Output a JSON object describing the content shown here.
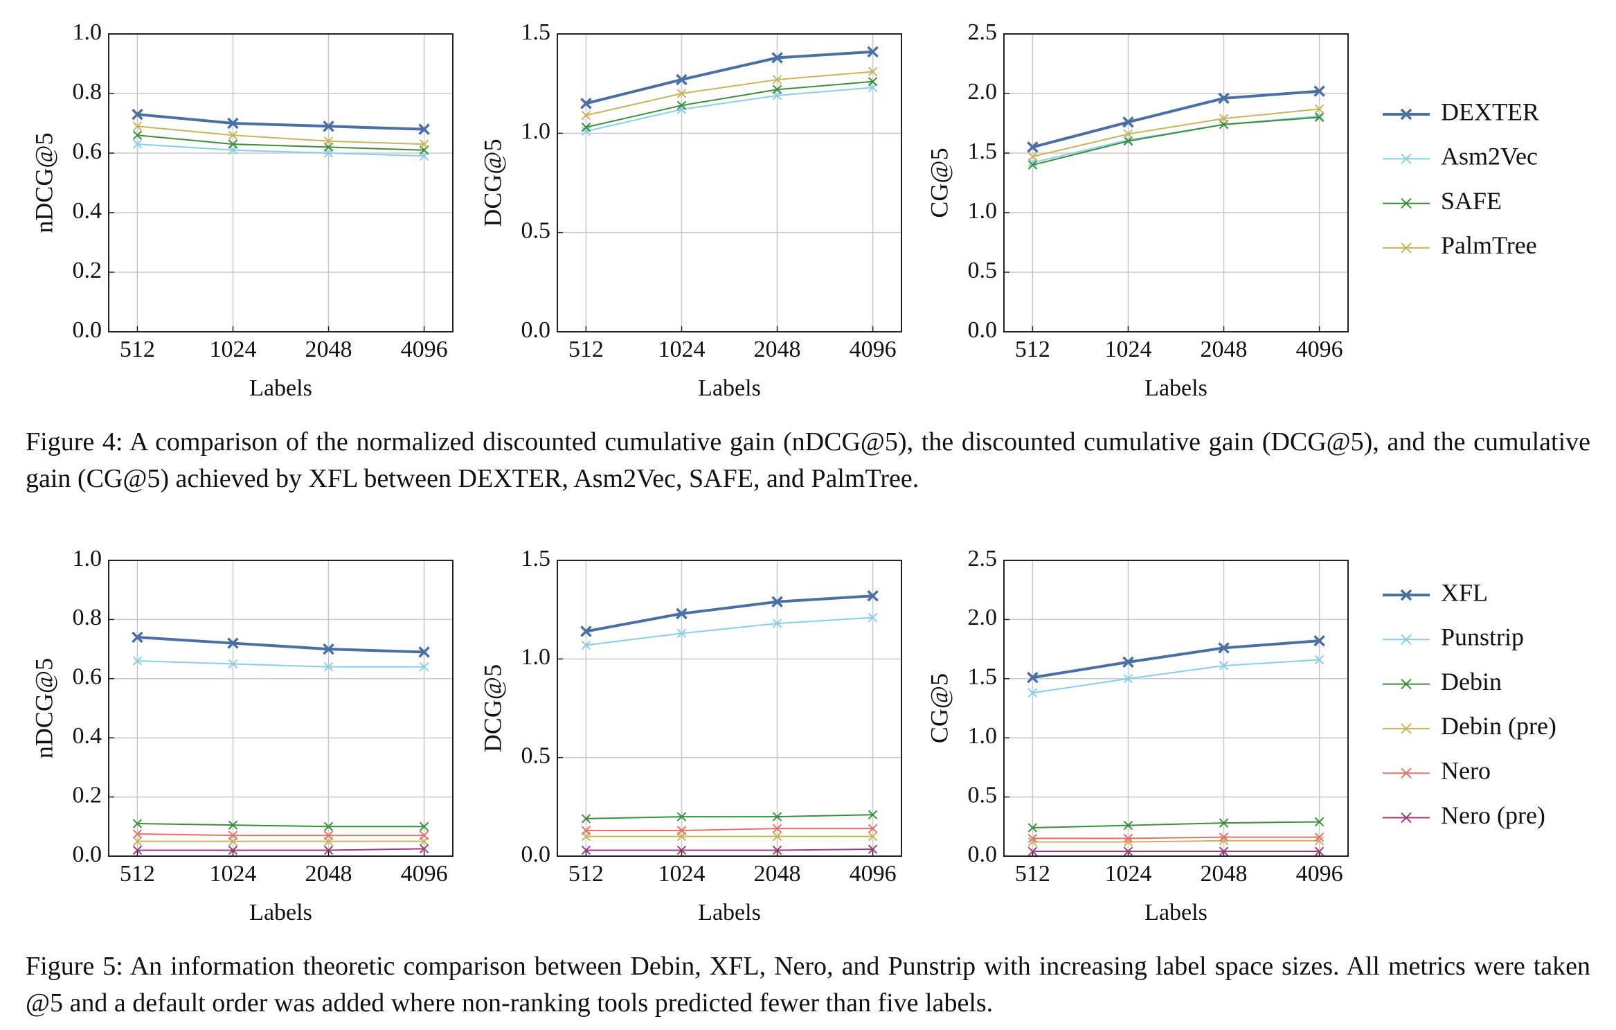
{
  "figures": [
    {
      "series": [
        {
          "name": "DEXTER",
          "color": "#4a6fa5"
        },
        {
          "name": "Asm2Vec",
          "color": "#87ceeb"
        },
        {
          "name": "SAFE",
          "color": "#3a8f3a"
        },
        {
          "name": "PalmTree",
          "color": "#c9b458"
        }
      ],
      "charts": [
        {
          "type": "line",
          "ylabel": "nDCG@5",
          "xlabel": "Labels",
          "categories": [
            "512",
            "1024",
            "2048",
            "4096"
          ],
          "ylim": [
            0,
            1
          ],
          "yticks": [
            {
              "value": 0,
              "label": "0.0"
            },
            {
              "value": 0.2,
              "label": "0.2"
            },
            {
              "value": 0.4,
              "label": "0.4"
            },
            {
              "value": 0.6,
              "label": "0.6"
            },
            {
              "value": 0.8,
              "label": "0.8"
            },
            {
              "value": 1,
              "label": "1.0"
            }
          ],
          "values": [
            [
              0.73,
              0.7,
              0.69,
              0.68
            ],
            [
              0.63,
              0.61,
              0.6,
              0.59
            ],
            [
              0.66,
              0.63,
              0.62,
              0.61
            ],
            [
              0.69,
              0.66,
              0.64,
              0.63
            ]
          ]
        },
        {
          "type": "line",
          "ylabel": "DCG@5",
          "xlabel": "Labels",
          "categories": [
            "512",
            "1024",
            "2048",
            "4096"
          ],
          "ylim": [
            0,
            1.5
          ],
          "yticks": [
            {
              "value": 0,
              "label": "0.0"
            },
            0.5,
            {
              "value": 1,
              "label": "1.0"
            },
            1.5
          ],
          "values": [
            [
              1.15,
              1.27,
              1.38,
              1.41
            ],
            [
              1.01,
              1.12,
              1.19,
              1.23
            ],
            [
              1.03,
              1.14,
              1.22,
              1.26
            ],
            [
              1.09,
              1.2,
              1.27,
              1.31
            ]
          ]
        },
        {
          "type": "line",
          "ylabel": "CG@5",
          "xlabel": "Labels",
          "categories": [
            "512",
            "1024",
            "2048",
            "4096"
          ],
          "ylim": [
            0,
            2.5
          ],
          "yticks": [
            {
              "value": 0,
              "label": "0.0"
            },
            0.5,
            {
              "value": 1,
              "label": "1.0"
            },
            1.5,
            {
              "value": 2,
              "label": "2.0"
            },
            2.5
          ],
          "values": [
            [
              1.55,
              1.76,
              1.96,
              2.02
            ],
            [
              1.42,
              1.61,
              1.74,
              1.81
            ],
            [
              1.4,
              1.6,
              1.74,
              1.8
            ],
            [
              1.47,
              1.66,
              1.79,
              1.87
            ]
          ]
        }
      ],
      "caption": "Figure 4: A comparison of the normalized discounted cumulative gain (nDCG@5), the discounted cumulative gain (DCG@5), and the cumulative gain (CG@5) achieved by XFL between DEXTER, Asm2Vec, SAFE, and PalmTree."
    },
    {
      "series": [
        {
          "name": "XFL",
          "color": "#4a6fa5"
        },
        {
          "name": "Punstrip",
          "color": "#87ceeb"
        },
        {
          "name": "Debin",
          "color": "#3a8f3a"
        },
        {
          "name": "Debin (pre)",
          "color": "#c9b458"
        },
        {
          "name": "Nero",
          "color": "#e8706a"
        },
        {
          "name": "Nero (pre)",
          "color": "#9c3a7c"
        }
      ],
      "charts": [
        {
          "type": "line",
          "ylabel": "nDCG@5",
          "xlabel": "Labels",
          "categories": [
            "512",
            "1024",
            "2048",
            "4096"
          ],
          "ylim": [
            0,
            1
          ],
          "yticks": [
            {
              "value": 0,
              "label": "0.0"
            },
            {
              "value": 0.2,
              "label": "0.2"
            },
            {
              "value": 0.4,
              "label": "0.4"
            },
            {
              "value": 0.6,
              "label": "0.6"
            },
            {
              "value": 0.8,
              "label": "0.8"
            },
            {
              "value": 1,
              "label": "1.0"
            }
          ],
          "values": [
            [
              0.74,
              0.72,
              0.7,
              0.69
            ],
            [
              0.66,
              0.65,
              0.64,
              0.64
            ],
            [
              0.11,
              0.105,
              0.1,
              0.1
            ],
            [
              0.05,
              0.05,
              0.05,
              0.05
            ],
            [
              0.075,
              0.07,
              0.07,
              0.07
            ],
            [
              0.02,
              0.02,
              0.02,
              0.025
            ]
          ]
        },
        {
          "type": "line",
          "ylabel": "DCG@5",
          "xlabel": "Labels",
          "categories": [
            "512",
            "1024",
            "2048",
            "4096"
          ],
          "ylim": [
            0,
            1.5
          ],
          "yticks": [
            {
              "value": 0,
              "label": "0.0"
            },
            0.5,
            {
              "value": 1,
              "label": "1.0"
            },
            1.5
          ],
          "values": [
            [
              1.14,
              1.23,
              1.29,
              1.32
            ],
            [
              1.07,
              1.13,
              1.18,
              1.21
            ],
            [
              0.19,
              0.2,
              0.2,
              0.21
            ],
            [
              0.1,
              0.1,
              0.1,
              0.1
            ],
            [
              0.13,
              0.13,
              0.14,
              0.14
            ],
            [
              0.03,
              0.03,
              0.03,
              0.035
            ]
          ]
        },
        {
          "type": "line",
          "ylabel": "CG@5",
          "xlabel": "Labels",
          "categories": [
            "512",
            "1024",
            "2048",
            "4096"
          ],
          "ylim": [
            0,
            2.5
          ],
          "yticks": [
            {
              "value": 0,
              "label": "0.0"
            },
            0.5,
            {
              "value": 1,
              "label": "1.0"
            },
            1.5,
            {
              "value": 2,
              "label": "2.0"
            },
            2.5
          ],
          "values": [
            [
              1.51,
              1.64,
              1.76,
              1.82
            ],
            [
              1.38,
              1.5,
              1.61,
              1.66
            ],
            [
              0.24,
              0.26,
              0.28,
              0.29
            ],
            [
              0.12,
              0.12,
              0.13,
              0.13
            ],
            [
              0.15,
              0.15,
              0.16,
              0.16
            ],
            [
              0.04,
              0.04,
              0.04,
              0.04
            ]
          ]
        }
      ],
      "caption": "Figure 5: An information theoretic comparison between Debin, XFL, Nero, and Punstrip with increasing label space sizes. All metrics were taken @5 and a default order was added where non-ranking tools predicted fewer than five labels."
    }
  ]
}
